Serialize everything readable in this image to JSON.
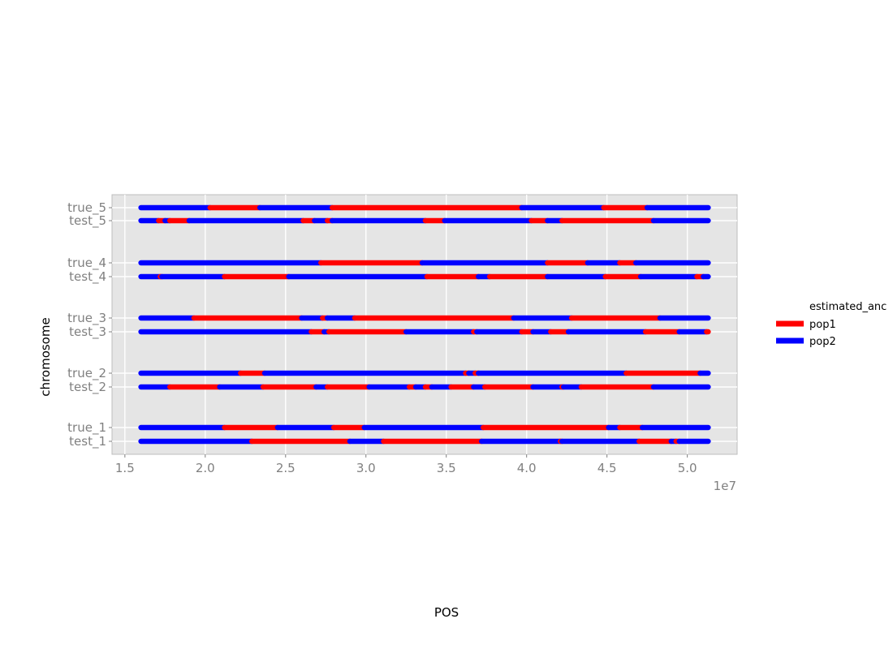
{
  "chart_data": {
    "type": "segment",
    "title": "",
    "xlabel": "POS",
    "ylabel": "chromosome",
    "x_scale_label": "1e7",
    "xlim": [
      14200000.0,
      53100000.0
    ],
    "xticks": [
      {
        "value": 15000000.0,
        "label": "1.5"
      },
      {
        "value": 20000000.0,
        "label": "2.0"
      },
      {
        "value": 25000000.0,
        "label": "2.5"
      },
      {
        "value": 30000000.0,
        "label": "3.0"
      },
      {
        "value": 35000000.0,
        "label": "3.5"
      },
      {
        "value": 40000000.0,
        "label": "4.0"
      },
      {
        "value": 45000000.0,
        "label": "4.5"
      },
      {
        "value": 50000000.0,
        "label": "5.0"
      }
    ],
    "legend": {
      "title": "estimated_anc",
      "position": "right",
      "items": [
        {
          "name": "pop1",
          "color": "#ff0000"
        },
        {
          "name": "pop2",
          "color": "#0000ff"
        }
      ]
    },
    "categories": [
      "test_1",
      "true_1",
      "test_2",
      "true_2",
      "test_3",
      "true_3",
      "test_4",
      "true_4",
      "test_5",
      "true_5"
    ],
    "rows": [
      {
        "label": "true_5",
        "segments": [
          {
            "start": 16000000.0,
            "end": 20300000.0,
            "anc": "pop2"
          },
          {
            "start": 20300000.0,
            "end": 23400000.0,
            "anc": "pop1"
          },
          {
            "start": 23400000.0,
            "end": 27900000.0,
            "anc": "pop2"
          },
          {
            "start": 27900000.0,
            "end": 39700000.0,
            "anc": "pop1"
          },
          {
            "start": 39700000.0,
            "end": 44800000.0,
            "anc": "pop2"
          },
          {
            "start": 44800000.0,
            "end": 47500000.0,
            "anc": "pop1"
          },
          {
            "start": 47500000.0,
            "end": 51300000.0,
            "anc": "pop2"
          }
        ]
      },
      {
        "label": "test_5",
        "segments": [
          {
            "start": 16000000.0,
            "end": 17100000.0,
            "anc": "pop2"
          },
          {
            "start": 17100000.0,
            "end": 17500000.0,
            "anc": "pop1"
          },
          {
            "start": 17500000.0,
            "end": 17800000.0,
            "anc": "pop2"
          },
          {
            "start": 17800000.0,
            "end": 19000000.0,
            "anc": "pop1"
          },
          {
            "start": 19000000.0,
            "end": 26100000.0,
            "anc": "pop2"
          },
          {
            "start": 26100000.0,
            "end": 26800000.0,
            "anc": "pop1"
          },
          {
            "start": 26800000.0,
            "end": 27600000.0,
            "anc": "pop2"
          },
          {
            "start": 27600000.0,
            "end": 27900000.0,
            "anc": "pop1"
          },
          {
            "start": 27900000.0,
            "end": 33700000.0,
            "anc": "pop2"
          },
          {
            "start": 33700000.0,
            "end": 34900000.0,
            "anc": "pop1"
          },
          {
            "start": 34900000.0,
            "end": 40300000.0,
            "anc": "pop2"
          },
          {
            "start": 40300000.0,
            "end": 41300000.0,
            "anc": "pop1"
          },
          {
            "start": 41300000.0,
            "end": 42200000.0,
            "anc": "pop2"
          },
          {
            "start": 42200000.0,
            "end": 47900000.0,
            "anc": "pop1"
          },
          {
            "start": 47900000.0,
            "end": 51300000.0,
            "anc": "pop2"
          }
        ]
      },
      {
        "label": "true_4",
        "segments": [
          {
            "start": 16000000.0,
            "end": 27200000.0,
            "anc": "pop2"
          },
          {
            "start": 27200000.0,
            "end": 33500000.0,
            "anc": "pop1"
          },
          {
            "start": 33500000.0,
            "end": 41300000.0,
            "anc": "pop2"
          },
          {
            "start": 41300000.0,
            "end": 43800000.0,
            "anc": "pop1"
          },
          {
            "start": 43800000.0,
            "end": 45800000.0,
            "anc": "pop2"
          },
          {
            "start": 45800000.0,
            "end": 46800000.0,
            "anc": "pop1"
          },
          {
            "start": 46800000.0,
            "end": 51300000.0,
            "anc": "pop2"
          }
        ]
      },
      {
        "label": "test_4",
        "segments": [
          {
            "start": 16000000.0,
            "end": 17200000.0,
            "anc": "pop2"
          },
          {
            "start": 17200000.0,
            "end": 17300000.0,
            "anc": "pop1"
          },
          {
            "start": 17300000.0,
            "end": 21200000.0,
            "anc": "pop2"
          },
          {
            "start": 21200000.0,
            "end": 25200000.0,
            "anc": "pop1"
          },
          {
            "start": 25200000.0,
            "end": 33800000.0,
            "anc": "pop2"
          },
          {
            "start": 33800000.0,
            "end": 37000000.0,
            "anc": "pop1"
          },
          {
            "start": 37000000.0,
            "end": 37700000.0,
            "anc": "pop2"
          },
          {
            "start": 37700000.0,
            "end": 41300000.0,
            "anc": "pop1"
          },
          {
            "start": 41300000.0,
            "end": 44900000.0,
            "anc": "pop2"
          },
          {
            "start": 44900000.0,
            "end": 47100000.0,
            "anc": "pop1"
          },
          {
            "start": 47100000.0,
            "end": 50600000.0,
            "anc": "pop2"
          },
          {
            "start": 50600000.0,
            "end": 51000000.0,
            "anc": "pop1"
          },
          {
            "start": 51000000.0,
            "end": 51300000.0,
            "anc": "pop2"
          }
        ]
      },
      {
        "label": "true_3",
        "segments": [
          {
            "start": 16000000.0,
            "end": 19300000.0,
            "anc": "pop2"
          },
          {
            "start": 19300000.0,
            "end": 26000000.0,
            "anc": "pop1"
          },
          {
            "start": 26000000.0,
            "end": 27300000.0,
            "anc": "pop2"
          },
          {
            "start": 27300000.0,
            "end": 27600000.0,
            "anc": "pop1"
          },
          {
            "start": 27600000.0,
            "end": 29300000.0,
            "anc": "pop2"
          },
          {
            "start": 29300000.0,
            "end": 39200000.0,
            "anc": "pop1"
          },
          {
            "start": 39200000.0,
            "end": 42800000.0,
            "anc": "pop2"
          },
          {
            "start": 42800000.0,
            "end": 48300000.0,
            "anc": "pop1"
          },
          {
            "start": 48300000.0,
            "end": 51300000.0,
            "anc": "pop2"
          }
        ]
      },
      {
        "label": "test_3",
        "segments": [
          {
            "start": 16000000.0,
            "end": 26600000.0,
            "anc": "pop2"
          },
          {
            "start": 26600000.0,
            "end": 27400000.0,
            "anc": "pop1"
          },
          {
            "start": 27400000.0,
            "end": 27700000.0,
            "anc": "pop2"
          },
          {
            "start": 27700000.0,
            "end": 32500000.0,
            "anc": "pop1"
          },
          {
            "start": 32500000.0,
            "end": 36700000.0,
            "anc": "pop2"
          },
          {
            "start": 36700000.0,
            "end": 36900000.0,
            "anc": "pop1"
          },
          {
            "start": 36900000.0,
            "end": 39700000.0,
            "anc": "pop2"
          },
          {
            "start": 39700000.0,
            "end": 40400000.0,
            "anc": "pop1"
          },
          {
            "start": 40400000.0,
            "end": 41500000.0,
            "anc": "pop2"
          },
          {
            "start": 41500000.0,
            "end": 42600000.0,
            "anc": "pop1"
          },
          {
            "start": 42600000.0,
            "end": 47400000.0,
            "anc": "pop2"
          },
          {
            "start": 47400000.0,
            "end": 49500000.0,
            "anc": "pop1"
          },
          {
            "start": 49500000.0,
            "end": 51200000.0,
            "anc": "pop2"
          },
          {
            "start": 51200000.0,
            "end": 51300000.0,
            "anc": "pop1"
          }
        ]
      },
      {
        "label": "true_2",
        "segments": [
          {
            "start": 16000000.0,
            "end": 22200000.0,
            "anc": "pop2"
          },
          {
            "start": 22200000.0,
            "end": 23700000.0,
            "anc": "pop1"
          },
          {
            "start": 23700000.0,
            "end": 36200000.0,
            "anc": "pop2"
          },
          {
            "start": 36200000.0,
            "end": 36400000.0,
            "anc": "pop1"
          },
          {
            "start": 36400000.0,
            "end": 36800000.0,
            "anc": "pop2"
          },
          {
            "start": 36800000.0,
            "end": 37000000.0,
            "anc": "pop1"
          },
          {
            "start": 37000000.0,
            "end": 46200000.0,
            "anc": "pop2"
          },
          {
            "start": 46200000.0,
            "end": 50800000.0,
            "anc": "pop1"
          },
          {
            "start": 50800000.0,
            "end": 51300000.0,
            "anc": "pop2"
          }
        ]
      },
      {
        "label": "test_2",
        "segments": [
          {
            "start": 16000000.0,
            "end": 17800000.0,
            "anc": "pop2"
          },
          {
            "start": 17800000.0,
            "end": 20900000.0,
            "anc": "pop1"
          },
          {
            "start": 20900000.0,
            "end": 23600000.0,
            "anc": "pop2"
          },
          {
            "start": 23600000.0,
            "end": 26900000.0,
            "anc": "pop1"
          },
          {
            "start": 26900000.0,
            "end": 27600000.0,
            "anc": "pop2"
          },
          {
            "start": 27600000.0,
            "end": 30200000.0,
            "anc": "pop1"
          },
          {
            "start": 30200000.0,
            "end": 32700000.0,
            "anc": "pop2"
          },
          {
            "start": 32700000.0,
            "end": 33100000.0,
            "anc": "pop1"
          },
          {
            "start": 33100000.0,
            "end": 33700000.0,
            "anc": "pop2"
          },
          {
            "start": 33700000.0,
            "end": 34100000.0,
            "anc": "pop1"
          },
          {
            "start": 34100000.0,
            "end": 35300000.0,
            "anc": "pop2"
          },
          {
            "start": 35300000.0,
            "end": 36700000.0,
            "anc": "pop1"
          },
          {
            "start": 36700000.0,
            "end": 37400000.0,
            "anc": "pop2"
          },
          {
            "start": 37400000.0,
            "end": 40400000.0,
            "anc": "pop1"
          },
          {
            "start": 40400000.0,
            "end": 42200000.0,
            "anc": "pop2"
          },
          {
            "start": 42200000.0,
            "end": 42300000.0,
            "anc": "pop1"
          },
          {
            "start": 42300000.0,
            "end": 43400000.0,
            "anc": "pop2"
          },
          {
            "start": 43400000.0,
            "end": 47900000.0,
            "anc": "pop1"
          },
          {
            "start": 47900000.0,
            "end": 51300000.0,
            "anc": "pop2"
          }
        ]
      },
      {
        "label": "true_1",
        "segments": [
          {
            "start": 16000000.0,
            "end": 21200000.0,
            "anc": "pop2"
          },
          {
            "start": 21200000.0,
            "end": 24500000.0,
            "anc": "pop1"
          },
          {
            "start": 24500000.0,
            "end": 28000000.0,
            "anc": "pop2"
          },
          {
            "start": 28000000.0,
            "end": 29900000.0,
            "anc": "pop1"
          },
          {
            "start": 29900000.0,
            "end": 37300000.0,
            "anc": "pop2"
          },
          {
            "start": 37300000.0,
            "end": 45100000.0,
            "anc": "pop1"
          },
          {
            "start": 45100000.0,
            "end": 45800000.0,
            "anc": "pop2"
          },
          {
            "start": 45800000.0,
            "end": 47200000.0,
            "anc": "pop1"
          },
          {
            "start": 47200000.0,
            "end": 51300000.0,
            "anc": "pop2"
          }
        ]
      },
      {
        "label": "test_1",
        "segments": [
          {
            "start": 16000000.0,
            "end": 22900000.0,
            "anc": "pop2"
          },
          {
            "start": 22900000.0,
            "end": 29000000.0,
            "anc": "pop1"
          },
          {
            "start": 29000000.0,
            "end": 31100000.0,
            "anc": "pop2"
          },
          {
            "start": 31100000.0,
            "end": 37200000.0,
            "anc": "pop1"
          },
          {
            "start": 37200000.0,
            "end": 42100000.0,
            "anc": "pop2"
          },
          {
            "start": 42100000.0,
            "end": 42200000.0,
            "anc": "pop1"
          },
          {
            "start": 42200000.0,
            "end": 47000000.0,
            "anc": "pop2"
          },
          {
            "start": 47000000.0,
            "end": 49000000.0,
            "anc": "pop1"
          },
          {
            "start": 49000000.0,
            "end": 49300000.0,
            "anc": "pop2"
          },
          {
            "start": 49300000.0,
            "end": 49500000.0,
            "anc": "pop1"
          },
          {
            "start": 49500000.0,
            "end": 51300000.0,
            "anc": "pop2"
          }
        ]
      }
    ]
  }
}
